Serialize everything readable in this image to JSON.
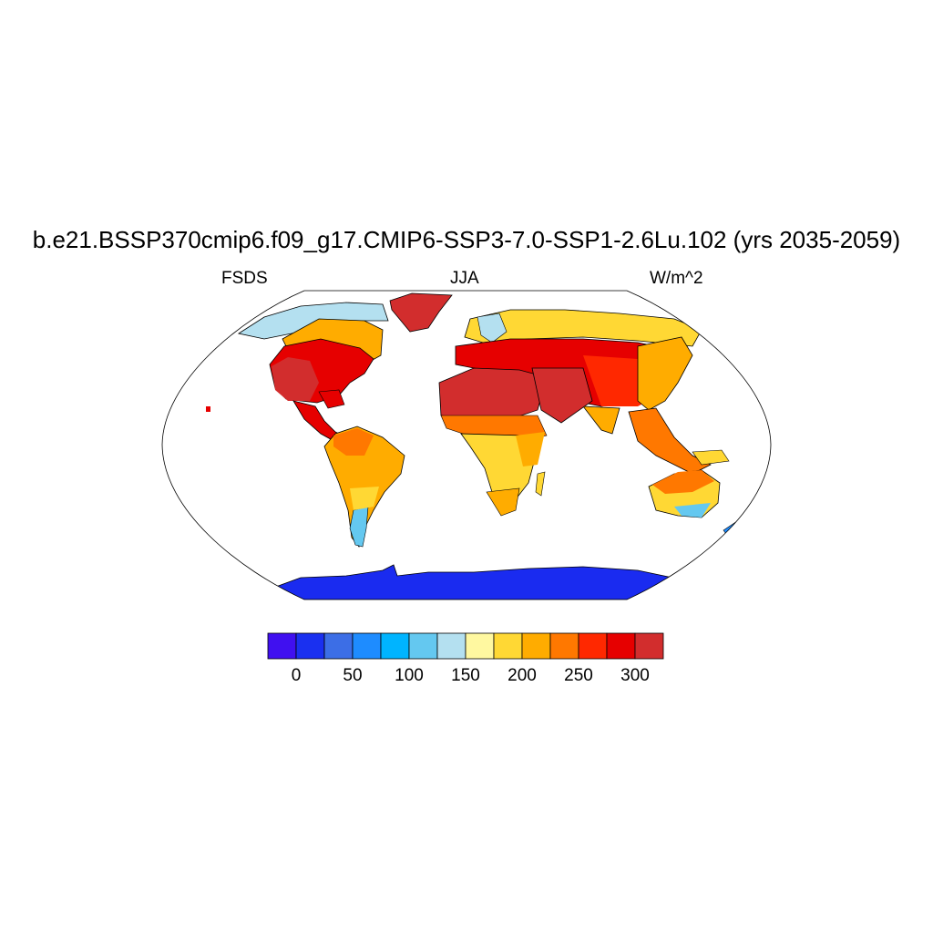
{
  "figure": {
    "title": "b.e21.BSSP370cmip6.f09_g17.CMIP6-SSP3-7.0-SSP1-2.6Lu.102 (yrs 2035-2059)",
    "variable": "FSDS",
    "season": "JJA",
    "units": "W/m^2"
  },
  "map": {
    "projection": "Robinson",
    "field_note_land_only": true
  },
  "colorbar": {
    "colors": [
      "#4010f0",
      "#1a30f0",
      "#3c6ee6",
      "#1e8cff",
      "#00b4ff",
      "#64c8f0",
      "#b4e0f0",
      "#fff8a0",
      "#ffd834",
      "#ffac00",
      "#ff7800",
      "#ff2800",
      "#e60000",
      "#d22d2d"
    ],
    "tick_labels": [
      "0",
      "50",
      "100",
      "150",
      "200",
      "250",
      "300"
    ]
  },
  "chart_data": {
    "type": "heatmap",
    "title": "b.e21.BSSP370cmip6.f09_g17.CMIP6-SSP3-7.0-SSP1-2.6Lu.102 (yrs 2035-2059)",
    "levels": [
      0,
      25,
      50,
      75,
      100,
      125,
      150,
      175,
      200,
      225,
      250,
      275,
      300
    ],
    "regions": [
      {
        "name": "Antarctica",
        "band": "0-25"
      },
      {
        "name": "Greenland",
        "band": ">300"
      },
      {
        "name": "Sahara and Arabia",
        "band": ">300"
      },
      {
        "name": "Western North America",
        "band": ">300"
      },
      {
        "name": "Southern South America",
        "band": "100-150"
      },
      {
        "name": "Equatorial Africa",
        "band": "175-225"
      },
      {
        "name": "Australia",
        "band": "150-250"
      }
    ]
  }
}
